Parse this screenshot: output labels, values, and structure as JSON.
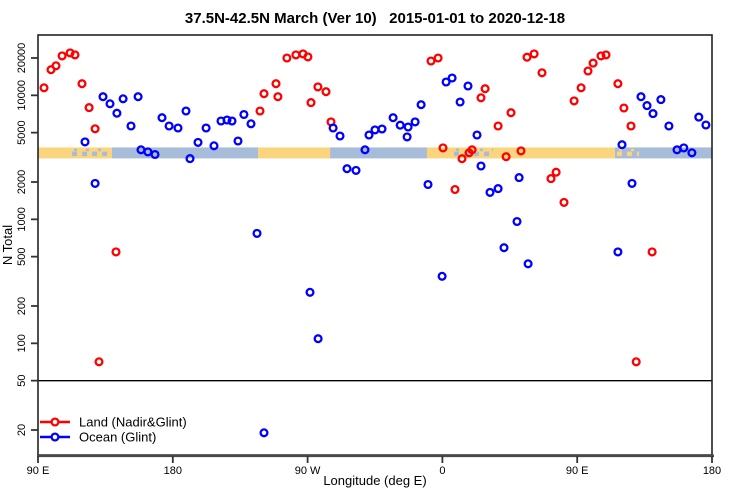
{
  "title": "37.5N-42.5N March (Ver 10)   2015-01-01 to 2020-12-18",
  "axes": {
    "ylabel": "N Total",
    "xlabel": "Longitude (deg E)"
  },
  "legend": {
    "items": [
      {
        "label": "Land (Nadir&Glint)",
        "color": "#ff0000"
      },
      {
        "label": "Ocean (Glint)",
        "color": "#0000ff"
      }
    ]
  },
  "chart_data": {
    "type": "scatter",
    "title": "37.5N-42.5N March (Ver 10)   2015-01-01 to 2020-12-18",
    "xlabel": "Longitude (deg E)",
    "ylabel": "N Total",
    "x_axis": {
      "range_deg": [
        90,
        540
      ],
      "ticks": [
        {
          "value": 90,
          "label": "90 E"
        },
        {
          "value": 180,
          "label": "180"
        },
        {
          "value": 270,
          "label": "90 W"
        },
        {
          "value": 360,
          "label": "0"
        },
        {
          "value": 450,
          "label": "90 E"
        },
        {
          "value": 540,
          "label": "180"
        }
      ],
      "note": "longitude axis spans 450 deg; 90E-180 data repeated at both ends"
    },
    "y_axis": {
      "scale": "log10",
      "ticks": [
        20,
        50,
        100,
        200,
        500,
        1000,
        2000,
        5000,
        10000,
        20000
      ],
      "range": [
        13,
        30000
      ]
    },
    "reference_line": {
      "N": 50,
      "color": "#000000"
    },
    "land_ocean_strip": {
      "N_range": [
        3100,
        3800
      ],
      "land_color": "#fbd57d",
      "ocean_color": "#a6bcd8",
      "segments": [
        {
          "from_deg": 90.0,
          "to_deg": 111.4,
          "type": "land"
        },
        {
          "from_deg": 111.4,
          "to_deg": 139.4,
          "type": "mixed-land"
        },
        {
          "from_deg": 139.4,
          "to_deg": 236.9,
          "type": "ocean"
        },
        {
          "from_deg": 236.9,
          "to_deg": 285.0,
          "type": "land"
        },
        {
          "from_deg": 285.0,
          "to_deg": 349.7,
          "type": "ocean"
        },
        {
          "from_deg": 349.7,
          "to_deg": 366.4,
          "type": "land"
        },
        {
          "from_deg": 366.4,
          "to_deg": 395.1,
          "type": "mixed-land"
        },
        {
          "from_deg": 395.1,
          "to_deg": 475.2,
          "type": "land"
        },
        {
          "from_deg": 475.2,
          "to_deg": 491.9,
          "type": "mixed-ocean"
        },
        {
          "from_deg": 491.9,
          "to_deg": 540.0,
          "type": "ocean"
        }
      ]
    },
    "series": [
      {
        "name": "Land (Nadir&Glint)",
        "color": "#ff0000",
        "marker": "open-circle",
        "points": [
          [
            94.0,
            11500
          ],
          [
            98.7,
            16100
          ],
          [
            102.0,
            17300
          ],
          [
            106.1,
            20800
          ],
          [
            111.4,
            22000
          ],
          [
            114.7,
            21200
          ],
          [
            119.4,
            12400
          ],
          [
            124.1,
            7960
          ],
          [
            128.1,
            5370
          ],
          [
            142.1,
            546
          ],
          [
            130.7,
            71
          ],
          [
            238.2,
            7480
          ],
          [
            240.9,
            10300
          ],
          [
            248.9,
            12400
          ],
          [
            250.2,
            9740
          ],
          [
            256.2,
            20000
          ],
          [
            262.2,
            21200
          ],
          [
            266.9,
            21600
          ],
          [
            270.2,
            20400
          ],
          [
            272.3,
            8730
          ],
          [
            276.9,
            11700
          ],
          [
            282.3,
            10700
          ],
          [
            285.6,
            6110
          ],
          [
            352.4,
            18900
          ],
          [
            357.1,
            20000
          ],
          [
            360.4,
            3770
          ],
          [
            368.4,
            1740
          ],
          [
            373.1,
            3080
          ],
          [
            377.8,
            3440
          ],
          [
            379.8,
            3640
          ],
          [
            385.8,
            9550
          ],
          [
            388.5,
            11300
          ],
          [
            397.2,
            5660
          ],
          [
            402.5,
            3200
          ],
          [
            405.8,
            7240
          ],
          [
            412.5,
            3560
          ],
          [
            416.5,
            20300
          ],
          [
            421.2,
            21600
          ],
          [
            426.5,
            15200
          ],
          [
            432.5,
            2130
          ],
          [
            435.9,
            2400
          ],
          [
            441.2,
            1370
          ],
          [
            447.9,
            9020
          ],
          [
            452.6,
            11500
          ],
          [
            457.2,
            15700
          ],
          [
            460.6,
            18200
          ],
          [
            465.9,
            20800
          ],
          [
            469.2,
            21200
          ],
          [
            477.2,
            12400
          ],
          [
            481.2,
            7900
          ],
          [
            485.9,
            5660
          ],
          [
            500.0,
            546
          ],
          [
            489.4,
            71
          ]
        ]
      },
      {
        "name": "Ocean (Glint)",
        "color": "#0000ff",
        "marker": "open-circle",
        "points": [
          [
            121.4,
            4210
          ],
          [
            133.4,
            9740
          ],
          [
            138.1,
            8540
          ],
          [
            142.7,
            7180
          ],
          [
            146.8,
            9380
          ],
          [
            156.8,
            9740
          ],
          [
            152.1,
            5660
          ],
          [
            128.1,
            1950
          ],
          [
            158.8,
            3640
          ],
          [
            163.4,
            3500
          ],
          [
            168.1,
            3330
          ],
          [
            172.8,
            6600
          ],
          [
            177.5,
            5660
          ],
          [
            183.5,
            5450
          ],
          [
            188.8,
            7480
          ],
          [
            191.5,
            3090
          ],
          [
            196.8,
            4170
          ],
          [
            202.2,
            5450
          ],
          [
            207.5,
            3920
          ],
          [
            212.2,
            6210
          ],
          [
            216.2,
            6330
          ],
          [
            219.5,
            6210
          ],
          [
            223.5,
            4280
          ],
          [
            227.5,
            7000
          ],
          [
            232.2,
            5890
          ],
          [
            236.2,
            770
          ],
          [
            240.9,
            19
          ],
          [
            271.6,
            258
          ],
          [
            277.0,
            109
          ],
          [
            287.0,
            5450
          ],
          [
            291.6,
            4700
          ],
          [
            296.3,
            2560
          ],
          [
            302.3,
            2480
          ],
          [
            308.3,
            3640
          ],
          [
            311.0,
            4790
          ],
          [
            315.0,
            5260
          ],
          [
            319.7,
            5350
          ],
          [
            327.1,
            6600
          ],
          [
            331.8,
            5740
          ],
          [
            337.1,
            5550
          ],
          [
            341.8,
            6100
          ],
          [
            345.8,
            8400
          ],
          [
            336.4,
            4620
          ],
          [
            362.5,
            12800
          ],
          [
            366.5,
            13800
          ],
          [
            377.1,
            11900
          ],
          [
            371.8,
            8840
          ],
          [
            383.1,
            4790
          ],
          [
            385.8,
            2690
          ],
          [
            350.4,
            1910
          ],
          [
            391.8,
            1650
          ],
          [
            397.2,
            1770
          ],
          [
            411.2,
            2170
          ],
          [
            409.8,
            961
          ],
          [
            401.1,
            590
          ],
          [
            417.2,
            438
          ],
          [
            359.8,
            347
          ],
          [
            479.9,
            4000
          ],
          [
            486.6,
            1950
          ],
          [
            477.2,
            546
          ],
          [
            492.6,
            9740
          ],
          [
            496.6,
            8270
          ],
          [
            500.6,
            7120
          ],
          [
            505.9,
            9230
          ],
          [
            511.2,
            5660
          ],
          [
            516.6,
            3640
          ],
          [
            521.2,
            3770
          ],
          [
            526.6,
            3440
          ],
          [
            531.2,
            6670
          ],
          [
            535.9,
            5760
          ]
        ]
      }
    ]
  }
}
